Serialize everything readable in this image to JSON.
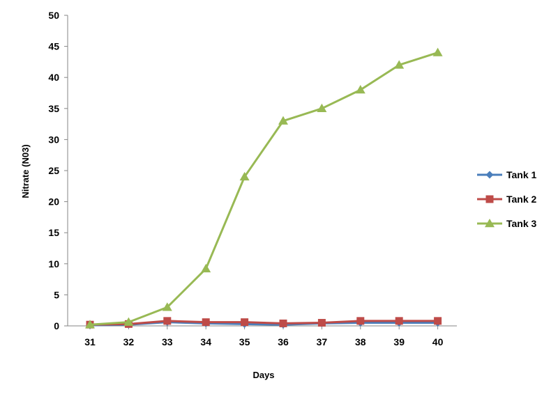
{
  "chart_data": {
    "type": "line",
    "title": "",
    "xlabel": "Days",
    "ylabel": "Nitrate (N03)",
    "x": [
      31,
      32,
      33,
      34,
      35,
      36,
      37,
      38,
      39,
      40
    ],
    "ylim": [
      0,
      50
    ],
    "yticks": [
      0,
      5,
      10,
      15,
      20,
      25,
      30,
      35,
      40,
      45,
      50
    ],
    "grid": false,
    "legend_position": "right",
    "series": [
      {
        "name": "Tank 1",
        "color": "#4a7ebb",
        "marker": "diamond",
        "values": [
          0.1,
          0.2,
          0.6,
          0.4,
          0.3,
          0.2,
          0.4,
          0.5,
          0.5,
          0.5
        ]
      },
      {
        "name": "Tank 2",
        "color": "#be4b48",
        "marker": "square",
        "values": [
          0.2,
          0.3,
          0.8,
          0.6,
          0.6,
          0.4,
          0.5,
          0.8,
          0.8,
          0.8
        ]
      },
      {
        "name": "Tank 3",
        "color": "#98b954",
        "marker": "triangle",
        "values": [
          0.2,
          0.6,
          3.0,
          9.2,
          24.0,
          33.0,
          35.0,
          38.0,
          42.0,
          44.0
        ]
      }
    ]
  }
}
